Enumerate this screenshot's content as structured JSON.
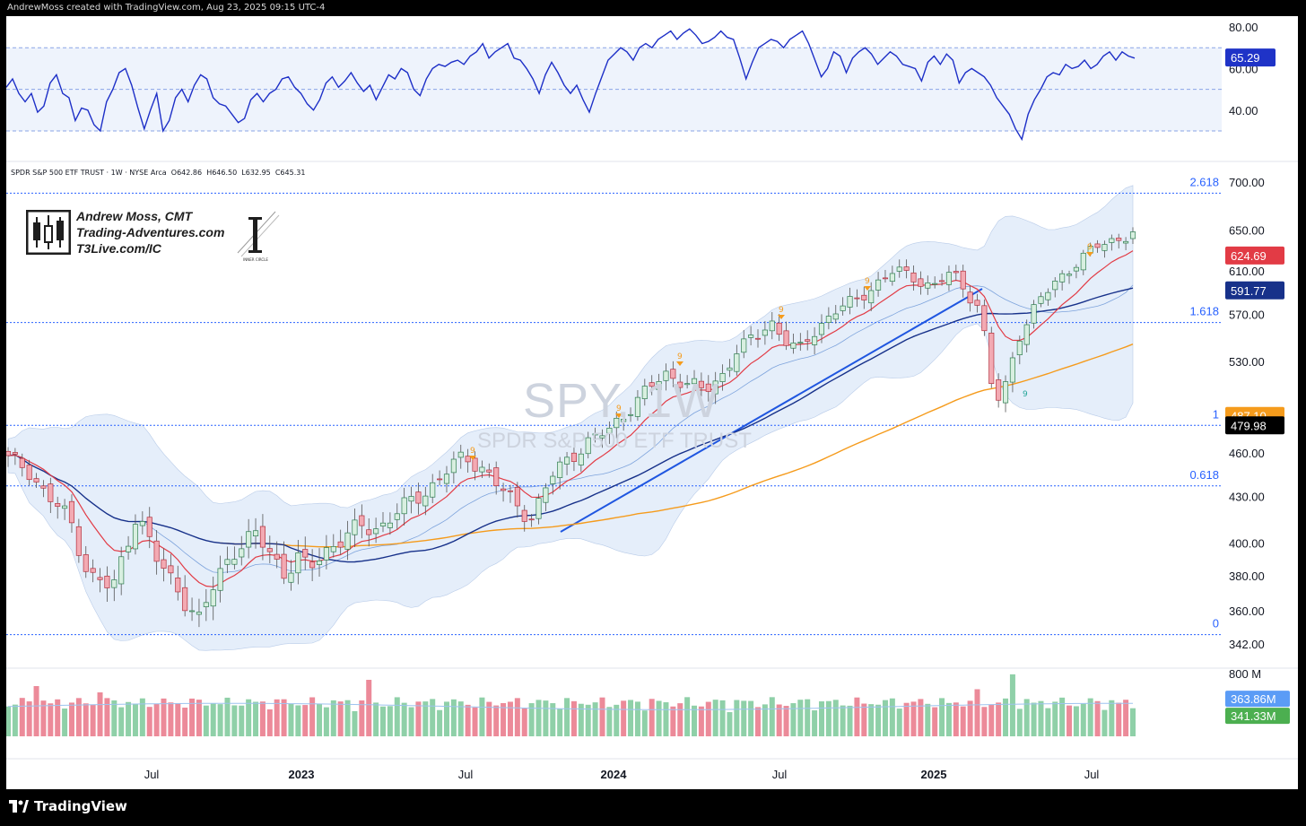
{
  "header": {
    "attribution": "AndrewMoss created with TradingView.com, Aug 23, 2025 09:15 UTC-4"
  },
  "legend": {
    "symbol_line": "SPDR S&P 500 ETF TRUST · 1W · NYSE Arca",
    "open": "O642.86",
    "high": "H646.50",
    "low": "L632.95",
    "close": "C645.31"
  },
  "brand": {
    "name": "Andrew Moss, CMT",
    "site": "Trading-Adventures.com",
    "url": "T3Live.com/IC",
    "logo_caption": "INNER CIRCLE"
  },
  "watermark": {
    "ticker": "SPY, 1W",
    "name": "SPDR S&P 500 ETF TRUST"
  },
  "footer": {
    "logo_text": "TradingView"
  },
  "colors": {
    "up": "#6fbf8e",
    "down": "#e9838f",
    "rsi": "#1d2fc7",
    "ema_red": "#e23b45",
    "sma_blue": "#17318a",
    "sma_orange": "#f59b1c",
    "fib_line": "#2962ff",
    "trend_line": "#1f56e0",
    "band_fill": "#e5eefa"
  },
  "chart_data": {
    "type": "candlestick",
    "timeframe": "1W",
    "x_axis": {
      "labels": [
        "Jul",
        "2023",
        "Jul",
        "2024",
        "Jul",
        "2025",
        "Jul"
      ]
    },
    "price_axis": {
      "ticks": [
        700,
        650,
        610,
        570,
        530,
        487.1,
        460,
        430,
        400,
        380,
        360,
        342
      ],
      "tick_labels": [
        "700.00",
        "650.00",
        "610.00",
        "570.00",
        "530.00",
        "460.00",
        "430.00",
        "400.00",
        "380.00",
        "360.00",
        "342.00"
      ],
      "scale": "log"
    },
    "fib_levels": [
      {
        "label": "2.618",
        "price": 688
      },
      {
        "label": "1.618",
        "price": 563
      },
      {
        "label": "1",
        "price": 480
      },
      {
        "label": "0.618",
        "price": 437
      },
      {
        "label": "0",
        "price": 347
      }
    ],
    "price_tags": [
      {
        "value": "624.69",
        "color": "#e23b45"
      },
      {
        "value": "591.77",
        "color": "#17318a"
      },
      {
        "value": "487.10",
        "color": "#f59b1c"
      },
      {
        "value": "479.98",
        "color": "#000000"
      }
    ],
    "rsi": {
      "ticks": [
        "80.00",
        "60.00",
        "40.00"
      ],
      "levels": [
        70,
        50,
        30
      ],
      "current": "65.29",
      "values": [
        51,
        55,
        48,
        44,
        48,
        39,
        42,
        53,
        57,
        48,
        46,
        35,
        41,
        40,
        33,
        30,
        44,
        50,
        58,
        60,
        52,
        41,
        31,
        40,
        48,
        30,
        35,
        46,
        50,
        44,
        52,
        57,
        55,
        46,
        43,
        42,
        38,
        34,
        36,
        45,
        48,
        44,
        48,
        50,
        55,
        56,
        51,
        48,
        43,
        40,
        45,
        53,
        56,
        51,
        54,
        58,
        53,
        49,
        52,
        45,
        51,
        57,
        55,
        60,
        58,
        50,
        47,
        55,
        60,
        62,
        61,
        63,
        64,
        62,
        66,
        68,
        72,
        65,
        68,
        70,
        72,
        65,
        64,
        60,
        55,
        48,
        57,
        63,
        58,
        52,
        48,
        52,
        45,
        39,
        48,
        56,
        64,
        67,
        70,
        68,
        64,
        70,
        72,
        70,
        74,
        76,
        78,
        74,
        77,
        79,
        76,
        72,
        73,
        75,
        78,
        75,
        74,
        65,
        55,
        63,
        70,
        72,
        74,
        73,
        70,
        74,
        76,
        78,
        72,
        64,
        56,
        60,
        68,
        66,
        58,
        65,
        68,
        70,
        67,
        62,
        65,
        68,
        66,
        62,
        61,
        60,
        54,
        63,
        66,
        62,
        67,
        64,
        53,
        58,
        60,
        58,
        56,
        52,
        46,
        42,
        38,
        31,
        26,
        38,
        45,
        50,
        56,
        58,
        57,
        62,
        60,
        61,
        64,
        60,
        62,
        66,
        68,
        64,
        68,
        66,
        65
      ]
    },
    "volume": {
      "ticks": [
        "800 M"
      ],
      "tags": [
        {
          "value": "363.86M",
          "color": "#5b9cf6"
        },
        {
          "value": "341.33M",
          "color": "#4caf50"
        }
      ]
    }
  }
}
